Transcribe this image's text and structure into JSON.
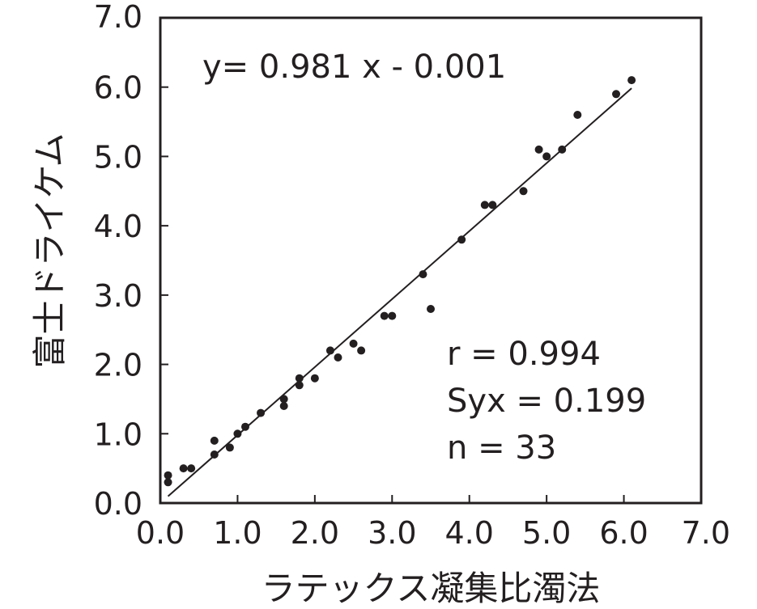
{
  "chart_data": {
    "type": "scatter",
    "title": "",
    "xlabel": "ラテックス凝集比濁法",
    "ylabel": "富士ドライケム",
    "xlim": [
      0,
      7
    ],
    "ylim": [
      0,
      7
    ],
    "x_ticks": [
      "0.0",
      "1.0",
      "2.0",
      "3.0",
      "4.0",
      "5.0",
      "6.0",
      "7.0"
    ],
    "y_ticks": [
      "0.0",
      "1.0",
      "2.0",
      "3.0",
      "4.0",
      "5.0",
      "6.0",
      "7.0"
    ],
    "grid": false,
    "regression": {
      "equation": "y= 0.981 x - 0.001",
      "slope": 0.981,
      "intercept": -0.001,
      "x_range": [
        0.1,
        6.1
      ]
    },
    "stats": [
      "r = 0.994",
      "Syx = 0.199",
      "n = 33"
    ],
    "points": [
      [
        0.1,
        0.3
      ],
      [
        0.1,
        0.4
      ],
      [
        0.3,
        0.5
      ],
      [
        0.4,
        0.5
      ],
      [
        0.7,
        0.7
      ],
      [
        0.7,
        0.9
      ],
      [
        0.9,
        0.8
      ],
      [
        1.0,
        1.0
      ],
      [
        1.1,
        1.1
      ],
      [
        1.3,
        1.3
      ],
      [
        1.6,
        1.4
      ],
      [
        1.6,
        1.5
      ],
      [
        1.8,
        1.7
      ],
      [
        1.8,
        1.8
      ],
      [
        2.0,
        1.8
      ],
      [
        2.2,
        2.2
      ],
      [
        2.3,
        2.1
      ],
      [
        2.5,
        2.3
      ],
      [
        2.6,
        2.2
      ],
      [
        2.9,
        2.7
      ],
      [
        3.0,
        2.7
      ],
      [
        3.4,
        3.3
      ],
      [
        3.5,
        2.8
      ],
      [
        3.9,
        3.8
      ],
      [
        4.2,
        4.3
      ],
      [
        4.3,
        4.3
      ],
      [
        4.7,
        4.5
      ],
      [
        4.9,
        5.1
      ],
      [
        5.0,
        5.0
      ],
      [
        5.2,
        5.1
      ],
      [
        5.4,
        5.6
      ],
      [
        5.9,
        5.9
      ],
      [
        6.1,
        6.1
      ]
    ]
  }
}
